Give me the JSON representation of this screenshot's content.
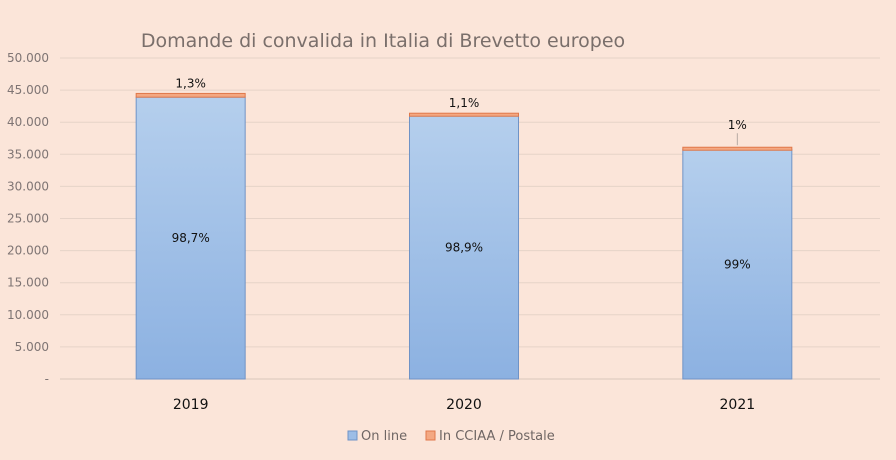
{
  "chart_data": {
    "type": "bar",
    "stacked": true,
    "title": "Domande di convalida in Italia di Brevetto europeo",
    "xlabel": "",
    "ylabel": "",
    "categories": [
      "2019",
      "2020",
      "2021"
    ],
    "ylim": [
      0,
      50000
    ],
    "yticks": [
      0,
      5000,
      10000,
      15000,
      20000,
      25000,
      30000,
      35000,
      40000,
      45000,
      50000
    ],
    "ytick_labels": [
      "-",
      "5.000",
      "10.000",
      "15.000",
      "20.000",
      "25.000",
      "30.000",
      "35.000",
      "40.000",
      "45.000",
      "50.000"
    ],
    "grid": true,
    "legend_position": "bottom",
    "series": [
      {
        "name": "On line",
        "color": "#9dbde6",
        "values": [
          43900,
          40950,
          35740
        ],
        "data_labels": [
          "98,7%",
          "98,9%",
          "99%"
        ]
      },
      {
        "name": "In CCIAA / Postale",
        "color": "#f4a882",
        "values": [
          580,
          450,
          360
        ],
        "data_labels": [
          "1,3%",
          "1,1%",
          "1%"
        ]
      }
    ]
  },
  "colors": {
    "background": "#fbe5d9",
    "online_top": "#b3cdec",
    "online_bottom": "#8db2e2",
    "online_border": "#6f93c6",
    "postal": "#f4a882",
    "postal_border": "#e0784a",
    "grid": "#e6d3c8"
  }
}
